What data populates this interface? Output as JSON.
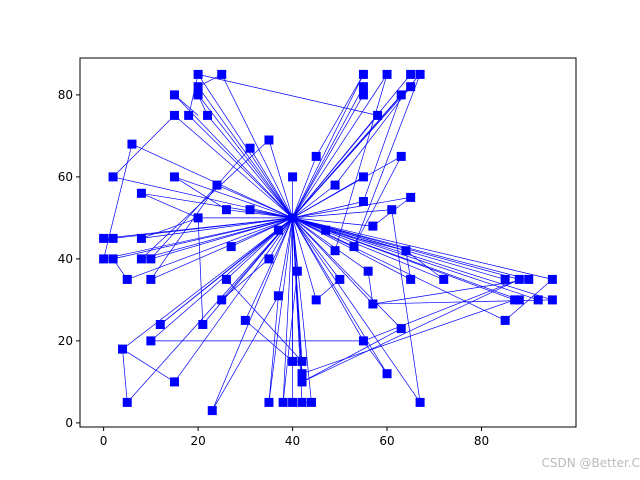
{
  "chart_data": {
    "type": "line",
    "title": "",
    "xlabel": "",
    "ylabel": "",
    "xlim": [
      -5,
      100
    ],
    "ylim": [
      -1,
      89
    ],
    "xticks": [
      0,
      20,
      40,
      60,
      80
    ],
    "yticks": [
      0,
      20,
      40,
      60,
      80
    ],
    "grid": false,
    "legend": "none",
    "line_color": "#0000ff",
    "marker": "square",
    "marker_color": "#0000ff",
    "hub": [
      40,
      50
    ],
    "points": [
      [
        20,
        85
      ],
      [
        25,
        85
      ],
      [
        55,
        85
      ],
      [
        60,
        85
      ],
      [
        65,
        85
      ],
      [
        67,
        85
      ],
      [
        20,
        82
      ],
      [
        55,
        82
      ],
      [
        65,
        82
      ],
      [
        15,
        80
      ],
      [
        20,
        80
      ],
      [
        55,
        80
      ],
      [
        63,
        80
      ],
      [
        18,
        75
      ],
      [
        15,
        75
      ],
      [
        22,
        75
      ],
      [
        58,
        75
      ],
      [
        35,
        69
      ],
      [
        6,
        68
      ],
      [
        31,
        67
      ],
      [
        45,
        65
      ],
      [
        63,
        65
      ],
      [
        2,
        60
      ],
      [
        15,
        60
      ],
      [
        40,
        60
      ],
      [
        55,
        60
      ],
      [
        24,
        58
      ],
      [
        49,
        58
      ],
      [
        8,
        56
      ],
      [
        65,
        55
      ],
      [
        55,
        54
      ],
      [
        20,
        50
      ],
      [
        26,
        52
      ],
      [
        31,
        52
      ],
      [
        61,
        52
      ],
      [
        57,
        48
      ],
      [
        37,
        47
      ],
      [
        47,
        47
      ],
      [
        0,
        45
      ],
      [
        2,
        45
      ],
      [
        8,
        45
      ],
      [
        27,
        43
      ],
      [
        53,
        43
      ],
      [
        49,
        42
      ],
      [
        64,
        42
      ],
      [
        0,
        40
      ],
      [
        2,
        40
      ],
      [
        8,
        40
      ],
      [
        10,
        40
      ],
      [
        35,
        40
      ],
      [
        41,
        37
      ],
      [
        56,
        37
      ],
      [
        5,
        35
      ],
      [
        10,
        35
      ],
      [
        26,
        35
      ],
      [
        50,
        35
      ],
      [
        65,
        35
      ],
      [
        72,
        35
      ],
      [
        85,
        35
      ],
      [
        88,
        35
      ],
      [
        90,
        35
      ],
      [
        95,
        35
      ],
      [
        37,
        31
      ],
      [
        25,
        30
      ],
      [
        45,
        30
      ],
      [
        87,
        30
      ],
      [
        88,
        30
      ],
      [
        92,
        30
      ],
      [
        95,
        30
      ],
      [
        57,
        29
      ],
      [
        30,
        25
      ],
      [
        85,
        25
      ],
      [
        12,
        24
      ],
      [
        21,
        24
      ],
      [
        63,
        23
      ],
      [
        10,
        20
      ],
      [
        55,
        20
      ],
      [
        4,
        18
      ],
      [
        40,
        15
      ],
      [
        42,
        15
      ],
      [
        42,
        12
      ],
      [
        60,
        12
      ],
      [
        42,
        10
      ],
      [
        15,
        10
      ],
      [
        5,
        5
      ],
      [
        35,
        5
      ],
      [
        38,
        5
      ],
      [
        40,
        5
      ],
      [
        42,
        5
      ],
      [
        44,
        5
      ],
      [
        67,
        5
      ],
      [
        23,
        3
      ]
    ],
    "extra_edges": [
      [
        [
          20,
          85
        ],
        [
          58,
          75
        ]
      ],
      [
        [
          15,
          80
        ],
        [
          20,
          75
        ]
      ],
      [
        [
          25,
          85
        ],
        [
          20,
          82
        ]
      ],
      [
        [
          55,
          85
        ],
        [
          45,
          65
        ]
      ],
      [
        [
          2,
          60
        ],
        [
          15,
          75
        ]
      ],
      [
        [
          15,
          60
        ],
        [
          26,
          52
        ]
      ],
      [
        [
          2,
          40
        ],
        [
          5,
          35
        ]
      ],
      [
        [
          4,
          18
        ],
        [
          5,
          5
        ]
      ],
      [
        [
          4,
          18
        ],
        [
          15,
          10
        ]
      ],
      [
        [
          10,
          20
        ],
        [
          55,
          20
        ]
      ],
      [
        [
          12,
          24
        ],
        [
          37,
          47
        ]
      ],
      [
        [
          21,
          24
        ],
        [
          20,
          50
        ]
      ],
      [
        [
          55,
          20
        ],
        [
          60,
          12
        ]
      ],
      [
        [
          55,
          20
        ],
        [
          88,
          35
        ]
      ],
      [
        [
          57,
          29
        ],
        [
          95,
          30
        ]
      ],
      [
        [
          57,
          29
        ],
        [
          90,
          35
        ]
      ],
      [
        [
          56,
          37
        ],
        [
          57,
          29
        ]
      ],
      [
        [
          45,
          30
        ],
        [
          50,
          35
        ]
      ],
      [
        [
          63,
          23
        ],
        [
          42,
          10
        ]
      ],
      [
        [
          85,
          25
        ],
        [
          95,
          35
        ]
      ],
      [
        [
          42,
          12
        ],
        [
          87,
          30
        ]
      ],
      [
        [
          42,
          10
        ],
        [
          88,
          35
        ]
      ],
      [
        [
          23,
          3
        ],
        [
          37,
          31
        ]
      ],
      [
        [
          38,
          5
        ],
        [
          41,
          37
        ]
      ],
      [
        [
          35,
          5
        ],
        [
          37,
          31
        ]
      ],
      [
        [
          42,
          5
        ],
        [
          44,
          5
        ]
      ],
      [
        [
          40,
          15
        ],
        [
          42,
          15
        ]
      ],
      [
        [
          67,
          5
        ],
        [
          61,
          52
        ]
      ],
      [
        [
          63,
          80
        ],
        [
          55,
          54
        ]
      ],
      [
        [
          65,
          82
        ],
        [
          49,
          58
        ]
      ],
      [
        [
          60,
          85
        ],
        [
          49,
          42
        ]
      ],
      [
        [
          67,
          85
        ],
        [
          53,
          43
        ]
      ],
      [
        [
          63,
          65
        ],
        [
          53,
          43
        ]
      ],
      [
        [
          65,
          55
        ],
        [
          57,
          48
        ]
      ],
      [
        [
          64,
          42
        ],
        [
          72,
          35
        ]
      ],
      [
        [
          64,
          42
        ],
        [
          65,
          35
        ]
      ],
      [
        [
          47,
          47
        ],
        [
          64,
          42
        ]
      ],
      [
        [
          30,
          25
        ],
        [
          40,
          15
        ]
      ],
      [
        [
          26,
          35
        ],
        [
          42,
          15
        ]
      ],
      [
        [
          25,
          30
        ],
        [
          35,
          40
        ]
      ],
      [
        [
          10,
          35
        ],
        [
          24,
          58
        ]
      ],
      [
        [
          8,
          40
        ],
        [
          35,
          69
        ]
      ],
      [
        [
          10,
          40
        ],
        [
          31,
          67
        ]
      ],
      [
        [
          8,
          45
        ],
        [
          20,
          50
        ]
      ],
      [
        [
          8,
          56
        ],
        [
          20,
          50
        ]
      ],
      [
        [
          6,
          68
        ],
        [
          0,
          40
        ]
      ],
      [
        [
          22,
          75
        ],
        [
          20,
          80
        ]
      ],
      [
        [
          18,
          75
        ],
        [
          20,
          85
        ]
      ]
    ],
    "watermark": "CSDN @Better.C"
  }
}
